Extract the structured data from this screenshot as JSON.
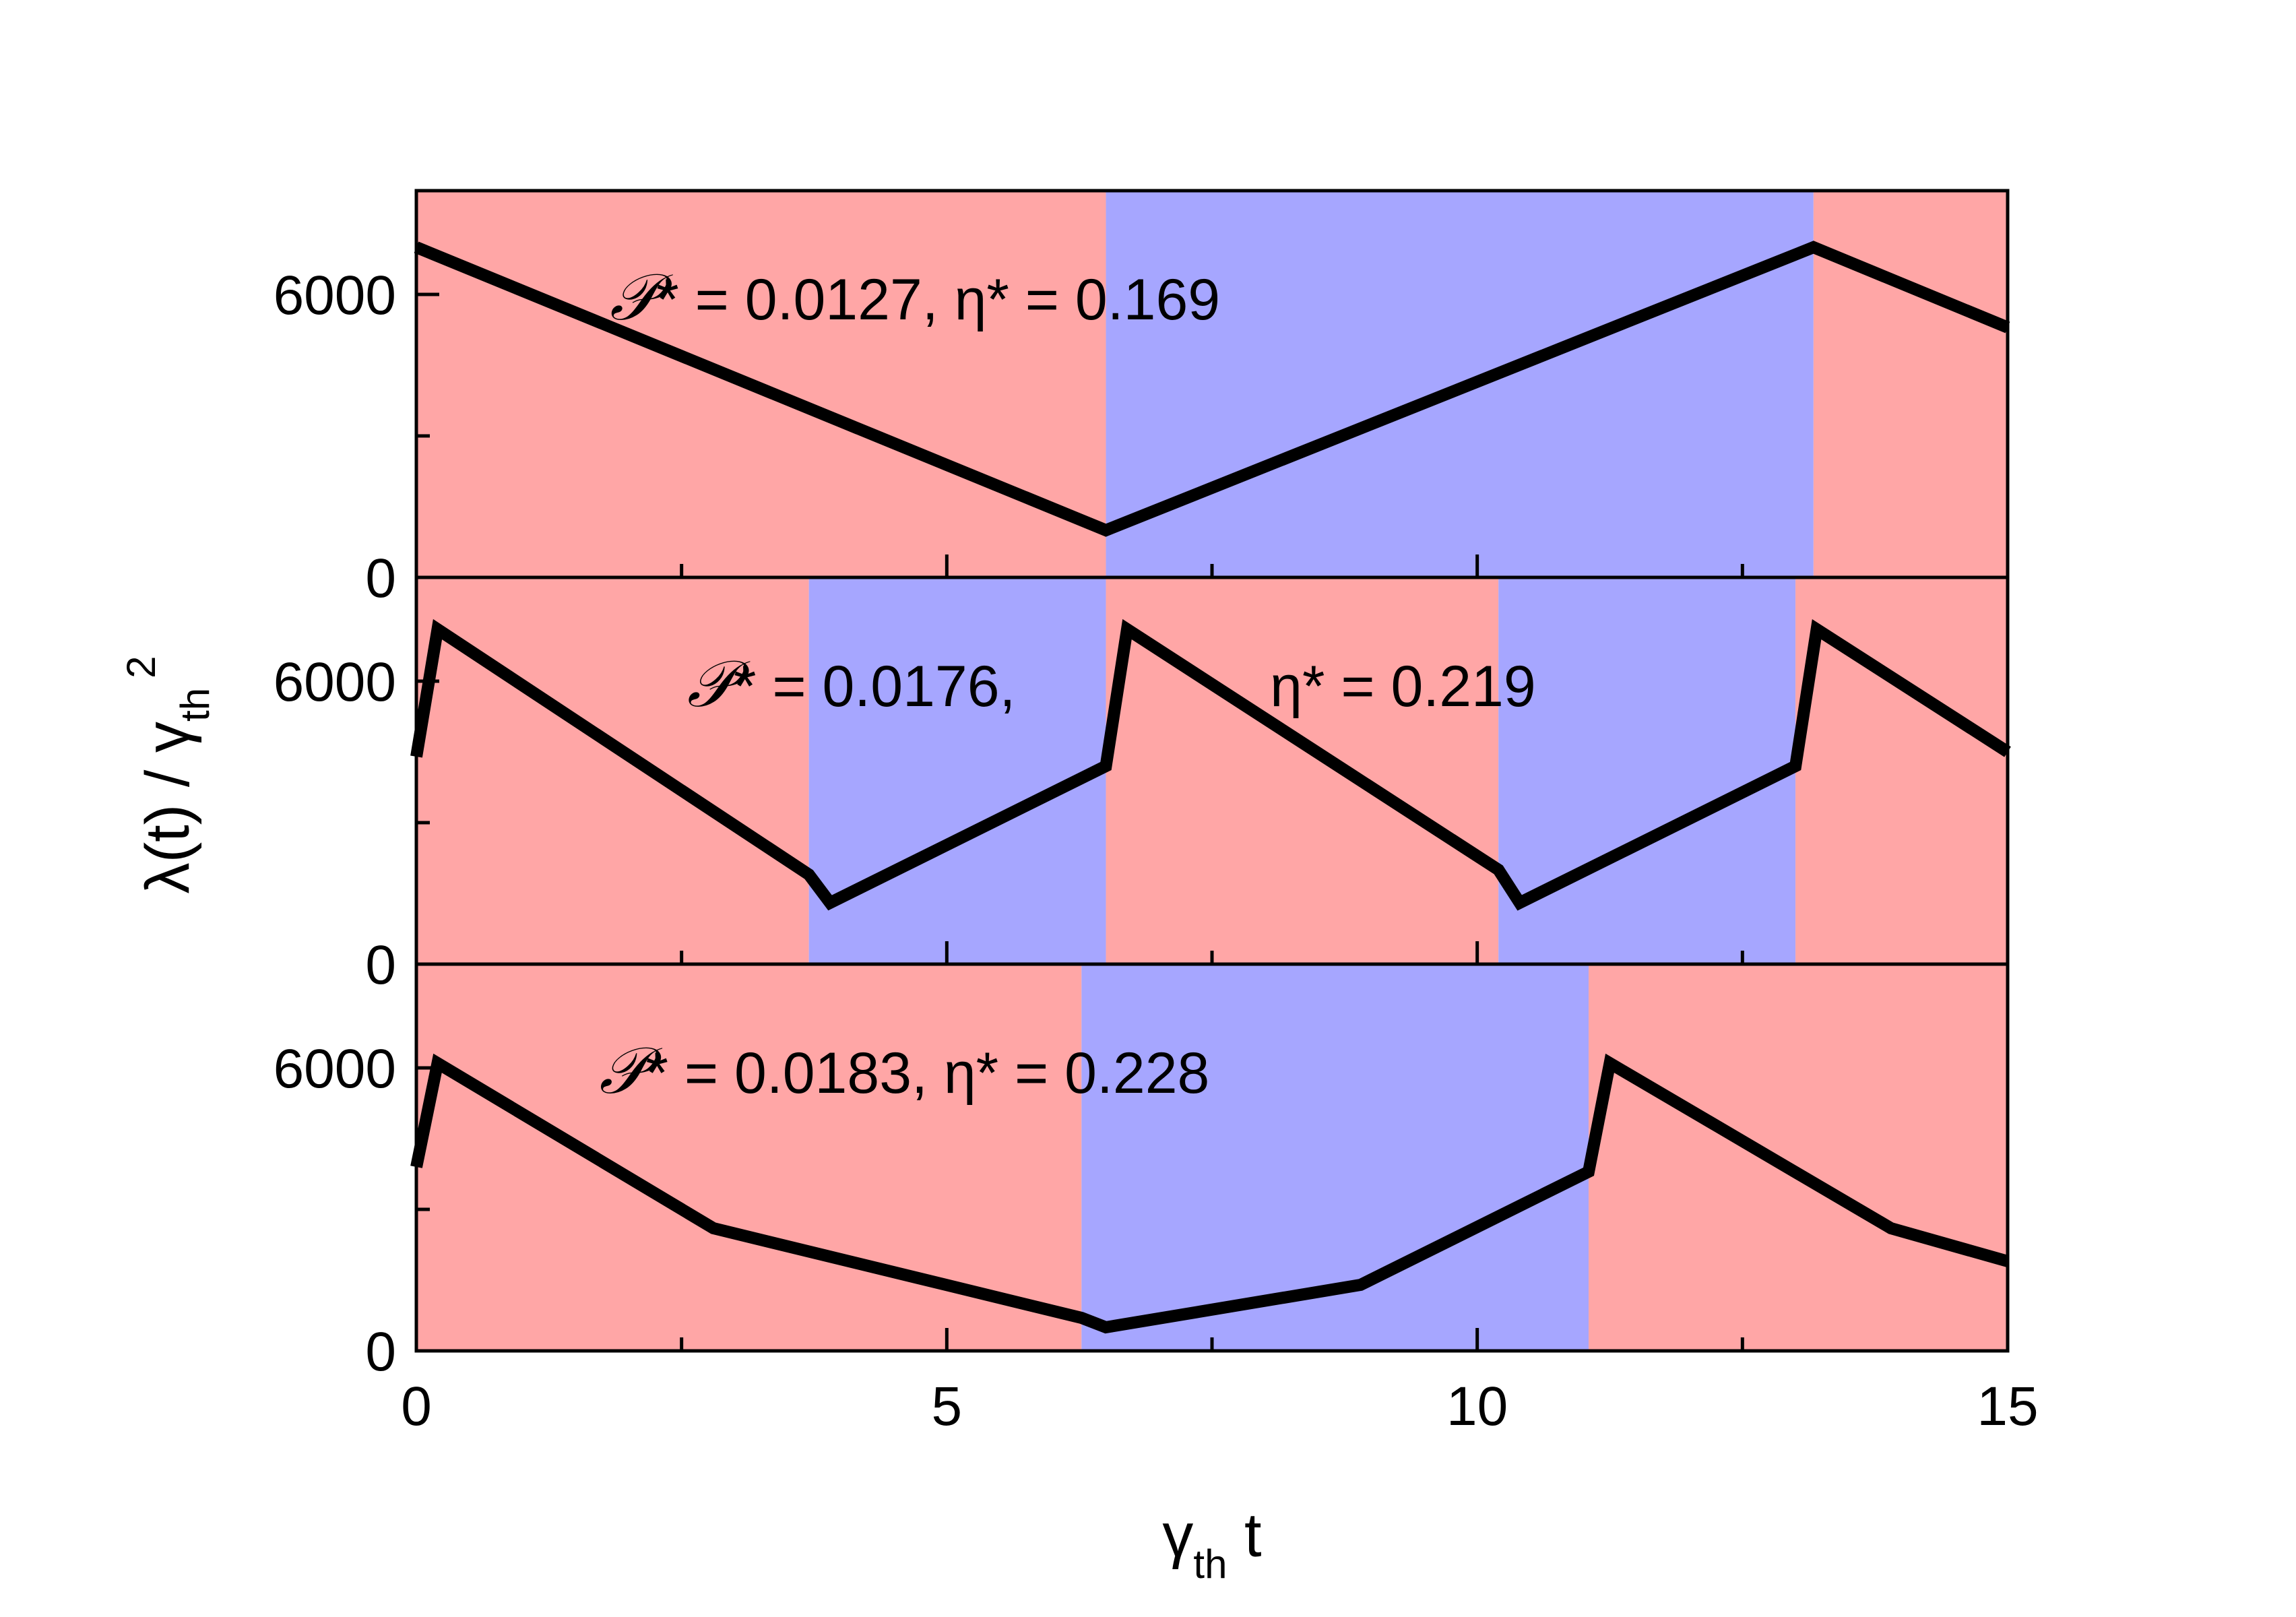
{
  "chart_data": {
    "type": "line",
    "x_axis": {
      "label_main": "γ",
      "label_sub": "th",
      "label_suffix": " t",
      "range": [
        0,
        15
      ],
      "ticks": [
        0,
        5,
        10,
        15
      ],
      "tick_labels": [
        "0",
        "5",
        "10",
        "15"
      ],
      "minor_step": 2.5
    },
    "y_axis": {
      "label_main": "λ(t) / γ",
      "label_sub": "th",
      "label_sup": "2",
      "range": [
        0,
        8200
      ],
      "ticks": [
        0,
        6000
      ],
      "tick_labels": [
        "0",
        "6000"
      ],
      "minor_step": 3000
    },
    "colors": {
      "red_band": "#FFA6A6",
      "blue_band": "#A6A6FF",
      "line": "#000000"
    },
    "panels": [
      {
        "annotations": [
          {
            "symbol": "𝒫",
            "text": "* = 0.0127, η* = 0.169",
            "x": 4.7,
            "y": 5900
          }
        ],
        "bands": [
          {
            "x0": 0,
            "x1": 6.5,
            "color": "red"
          },
          {
            "x0": 6.5,
            "x1": 13.17,
            "color": "blue"
          },
          {
            "x0": 13.17,
            "x1": 15,
            "color": "red"
          }
        ],
        "series": [
          {
            "x": [
              0,
              6.5,
              13.17,
              15
            ],
            "y": [
              7000,
              1000,
              7000,
              5300
            ]
          }
        ]
      },
      {
        "annotations": [
          {
            "symbol": "𝒫",
            "text": "* = 0.0176,",
            "x": 4.1,
            "y": 5900
          },
          {
            "symbol": "",
            "text": "η* = 0.219",
            "x": 9.3,
            "y": 5900
          }
        ],
        "bands": [
          {
            "x0": 0,
            "x1": 3.7,
            "color": "red"
          },
          {
            "x0": 3.7,
            "x1": 6.5,
            "color": "blue"
          },
          {
            "x0": 6.5,
            "x1": 10.2,
            "color": "red"
          },
          {
            "x0": 10.2,
            "x1": 13.0,
            "color": "blue"
          },
          {
            "x0": 13.0,
            "x1": 15,
            "color": "red"
          }
        ],
        "series": [
          {
            "x": [
              0,
              0.2,
              3.7,
              3.9,
              6.5,
              6.7,
              10.2,
              10.4,
              13.0,
              13.2,
              15
            ],
            "y": [
              4400,
              7100,
              1900,
              1300,
              4200,
              7100,
              2000,
              1300,
              4200,
              7100,
              4500
            ]
          }
        ]
      },
      {
        "annotations": [
          {
            "symbol": "𝒫",
            "text": "* = 0.0183, η* = 0.228",
            "x": 4.6,
            "y": 5900
          }
        ],
        "bands": [
          {
            "x0": 0,
            "x1": 6.27,
            "color": "red"
          },
          {
            "x0": 6.27,
            "x1": 11.05,
            "color": "blue"
          },
          {
            "x0": 11.05,
            "x1": 15,
            "color": "red"
          }
        ],
        "series": [
          {
            "x": [
              0,
              0.2,
              2.8,
              6.27,
              6.5,
              8.9,
              11.05,
              11.25,
              13.9,
              15
            ],
            "y": [
              3900,
              6100,
              2600,
              700,
              500,
              1400,
              3800,
              6100,
              2600,
              1900
            ]
          }
        ]
      }
    ]
  }
}
